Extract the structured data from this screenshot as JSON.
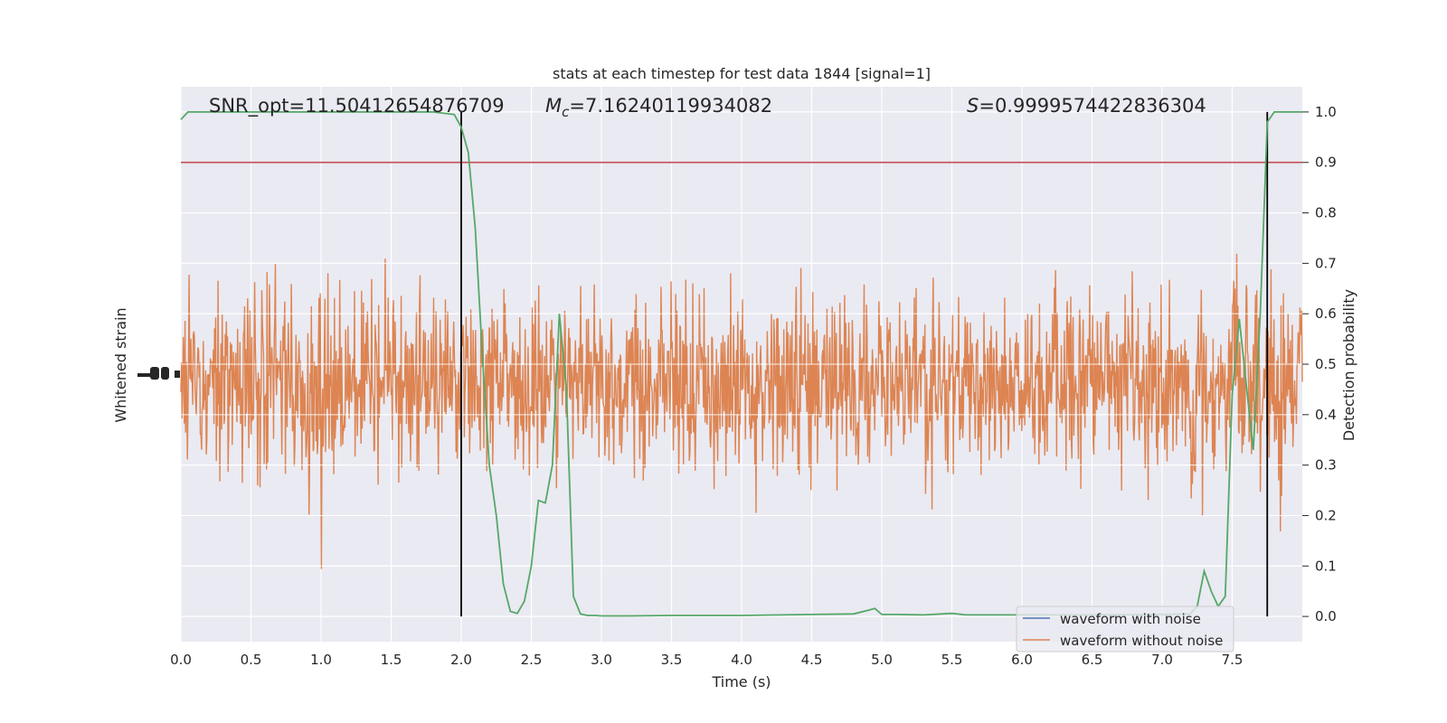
{
  "chart_data": {
    "type": "line",
    "title": "stats at each timestep for test data 1844 [signal=1]",
    "xlabel": "Time (s)",
    "ylabel_left": "Whitened strain",
    "ylabel_right": "Detection probability",
    "xlim": [
      0.0,
      8.0
    ],
    "ylim_right": [
      -0.05,
      1.05
    ],
    "x_ticks": [
      "0.0",
      "0.5",
      "1.0",
      "1.5",
      "2.0",
      "2.5",
      "3.0",
      "3.5",
      "4.0",
      "4.5",
      "5.0",
      "5.5",
      "6.0",
      "6.5",
      "7.0",
      "7.5"
    ],
    "y_ticks_right": [
      "0.0",
      "0.1",
      "0.2",
      "0.3",
      "0.4",
      "0.5",
      "0.6",
      "0.7",
      "0.8",
      "0.9",
      "1.0"
    ],
    "grid": true,
    "legend_position": "lower-right",
    "annotations": {
      "snr": "SNR_opt=11.50412654876709",
      "mc_symbol": "M",
      "mc_sub": "c",
      "mc_value": "=7.16240119934082",
      "s_symbol": "S",
      "s_value": "=0.9999574422836304"
    },
    "threshold": 0.9,
    "vertical_markers": [
      2.0,
      7.75
    ],
    "series": [
      {
        "name": "waveform with noise",
        "color": "#4c72b0"
      },
      {
        "name": "waveform without noise",
        "color": "#dd8452"
      }
    ],
    "detection_probability": {
      "color": "#55a868",
      "x": [
        0.0,
        0.05,
        0.15,
        0.3,
        0.5,
        1.0,
        1.5,
        1.8,
        1.95,
        2.0,
        2.05,
        2.1,
        2.15,
        2.2,
        2.25,
        2.3,
        2.35,
        2.4,
        2.45,
        2.5,
        2.55,
        2.6,
        2.65,
        2.7,
        2.75,
        2.8,
        2.85,
        2.9,
        2.95,
        3.0,
        3.1,
        3.2,
        3.5,
        4.0,
        4.5,
        4.8,
        4.9,
        4.95,
        5.0,
        5.1,
        5.3,
        5.5,
        5.6,
        6.0,
        6.5,
        7.0,
        7.2,
        7.25,
        7.3,
        7.35,
        7.4,
        7.45,
        7.5,
        7.55,
        7.6,
        7.65,
        7.7,
        7.75,
        7.8,
        7.85,
        7.9,
        7.95,
        8.0
      ],
      "y": [
        0.985,
        1.0,
        1.0,
        1.0,
        1.0,
        1.0,
        1.0,
        1.0,
        0.995,
        0.97,
        0.92,
        0.77,
        0.52,
        0.3,
        0.2,
        0.065,
        0.01,
        0.006,
        0.03,
        0.1,
        0.23,
        0.225,
        0.3,
        0.6,
        0.45,
        0.04,
        0.005,
        0.002,
        0.002,
        0.001,
        0.001,
        0.001,
        0.002,
        0.002,
        0.004,
        0.005,
        0.012,
        0.016,
        0.004,
        0.004,
        0.003,
        0.006,
        0.003,
        0.003,
        0.003,
        0.004,
        0.005,
        0.02,
        0.09,
        0.05,
        0.02,
        0.04,
        0.44,
        0.59,
        0.46,
        0.33,
        0.6,
        0.98,
        1.0,
        1.0,
        1.0,
        1.0,
        1.0
      ]
    }
  }
}
